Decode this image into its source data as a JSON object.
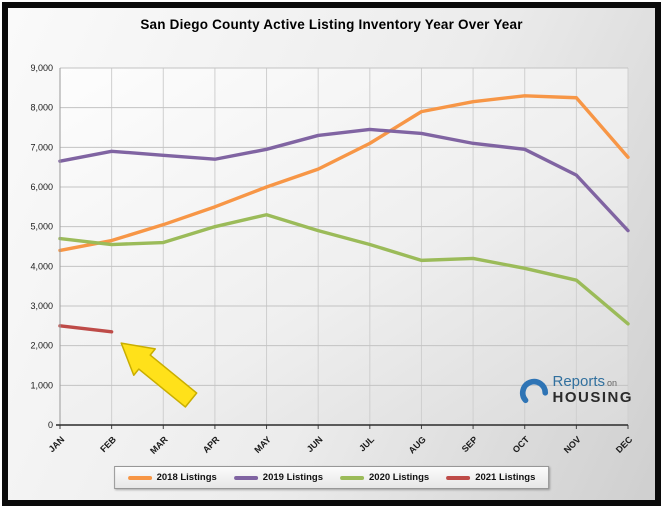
{
  "chart_data": {
    "type": "line",
    "title": "San Diego County Active Listing Inventory Year Over Year",
    "categories": [
      "JAN",
      "FEB",
      "MAR",
      "APR",
      "MAY",
      "JUN",
      "JUL",
      "AUG",
      "SEP",
      "OCT",
      "NOV",
      "DEC"
    ],
    "ylim": [
      0,
      9000
    ],
    "ytick_step": 1000,
    "ytick_labels": [
      "0",
      "1,000",
      "2,000",
      "3,000",
      "4,000",
      "5,000",
      "6,000",
      "7,000",
      "8,000",
      "9,000"
    ],
    "grid": true,
    "legend_position": "bottom",
    "series": [
      {
        "name": "2018 Listings",
        "color": "#F79646",
        "values": [
          4400,
          4650,
          5050,
          5500,
          6000,
          6450,
          7100,
          7900,
          8150,
          8300,
          8250,
          6750
        ]
      },
      {
        "name": "2019 Listings",
        "color": "#8064A2",
        "values": [
          6650,
          6900,
          6800,
          6700,
          6950,
          7300,
          7450,
          7350,
          7100,
          6950,
          6300,
          4900
        ]
      },
      {
        "name": "2020 Listings",
        "color": "#9BBB59",
        "values": [
          4700,
          4550,
          4600,
          5000,
          5300,
          4900,
          4550,
          4150,
          4200,
          3950,
          3650,
          2550
        ]
      },
      {
        "name": "2021 Listings",
        "color": "#BE4B48",
        "values": [
          2500,
          2350
        ]
      }
    ],
    "annotation": {
      "shape": "block-arrow",
      "color": "#FFE11A",
      "border_color": "#C9AE00",
      "points_at": "2021 Listings latest value (FEB)"
    }
  },
  "logo": {
    "reports": "Reports",
    "on": "on",
    "housing": "HOUSING"
  }
}
